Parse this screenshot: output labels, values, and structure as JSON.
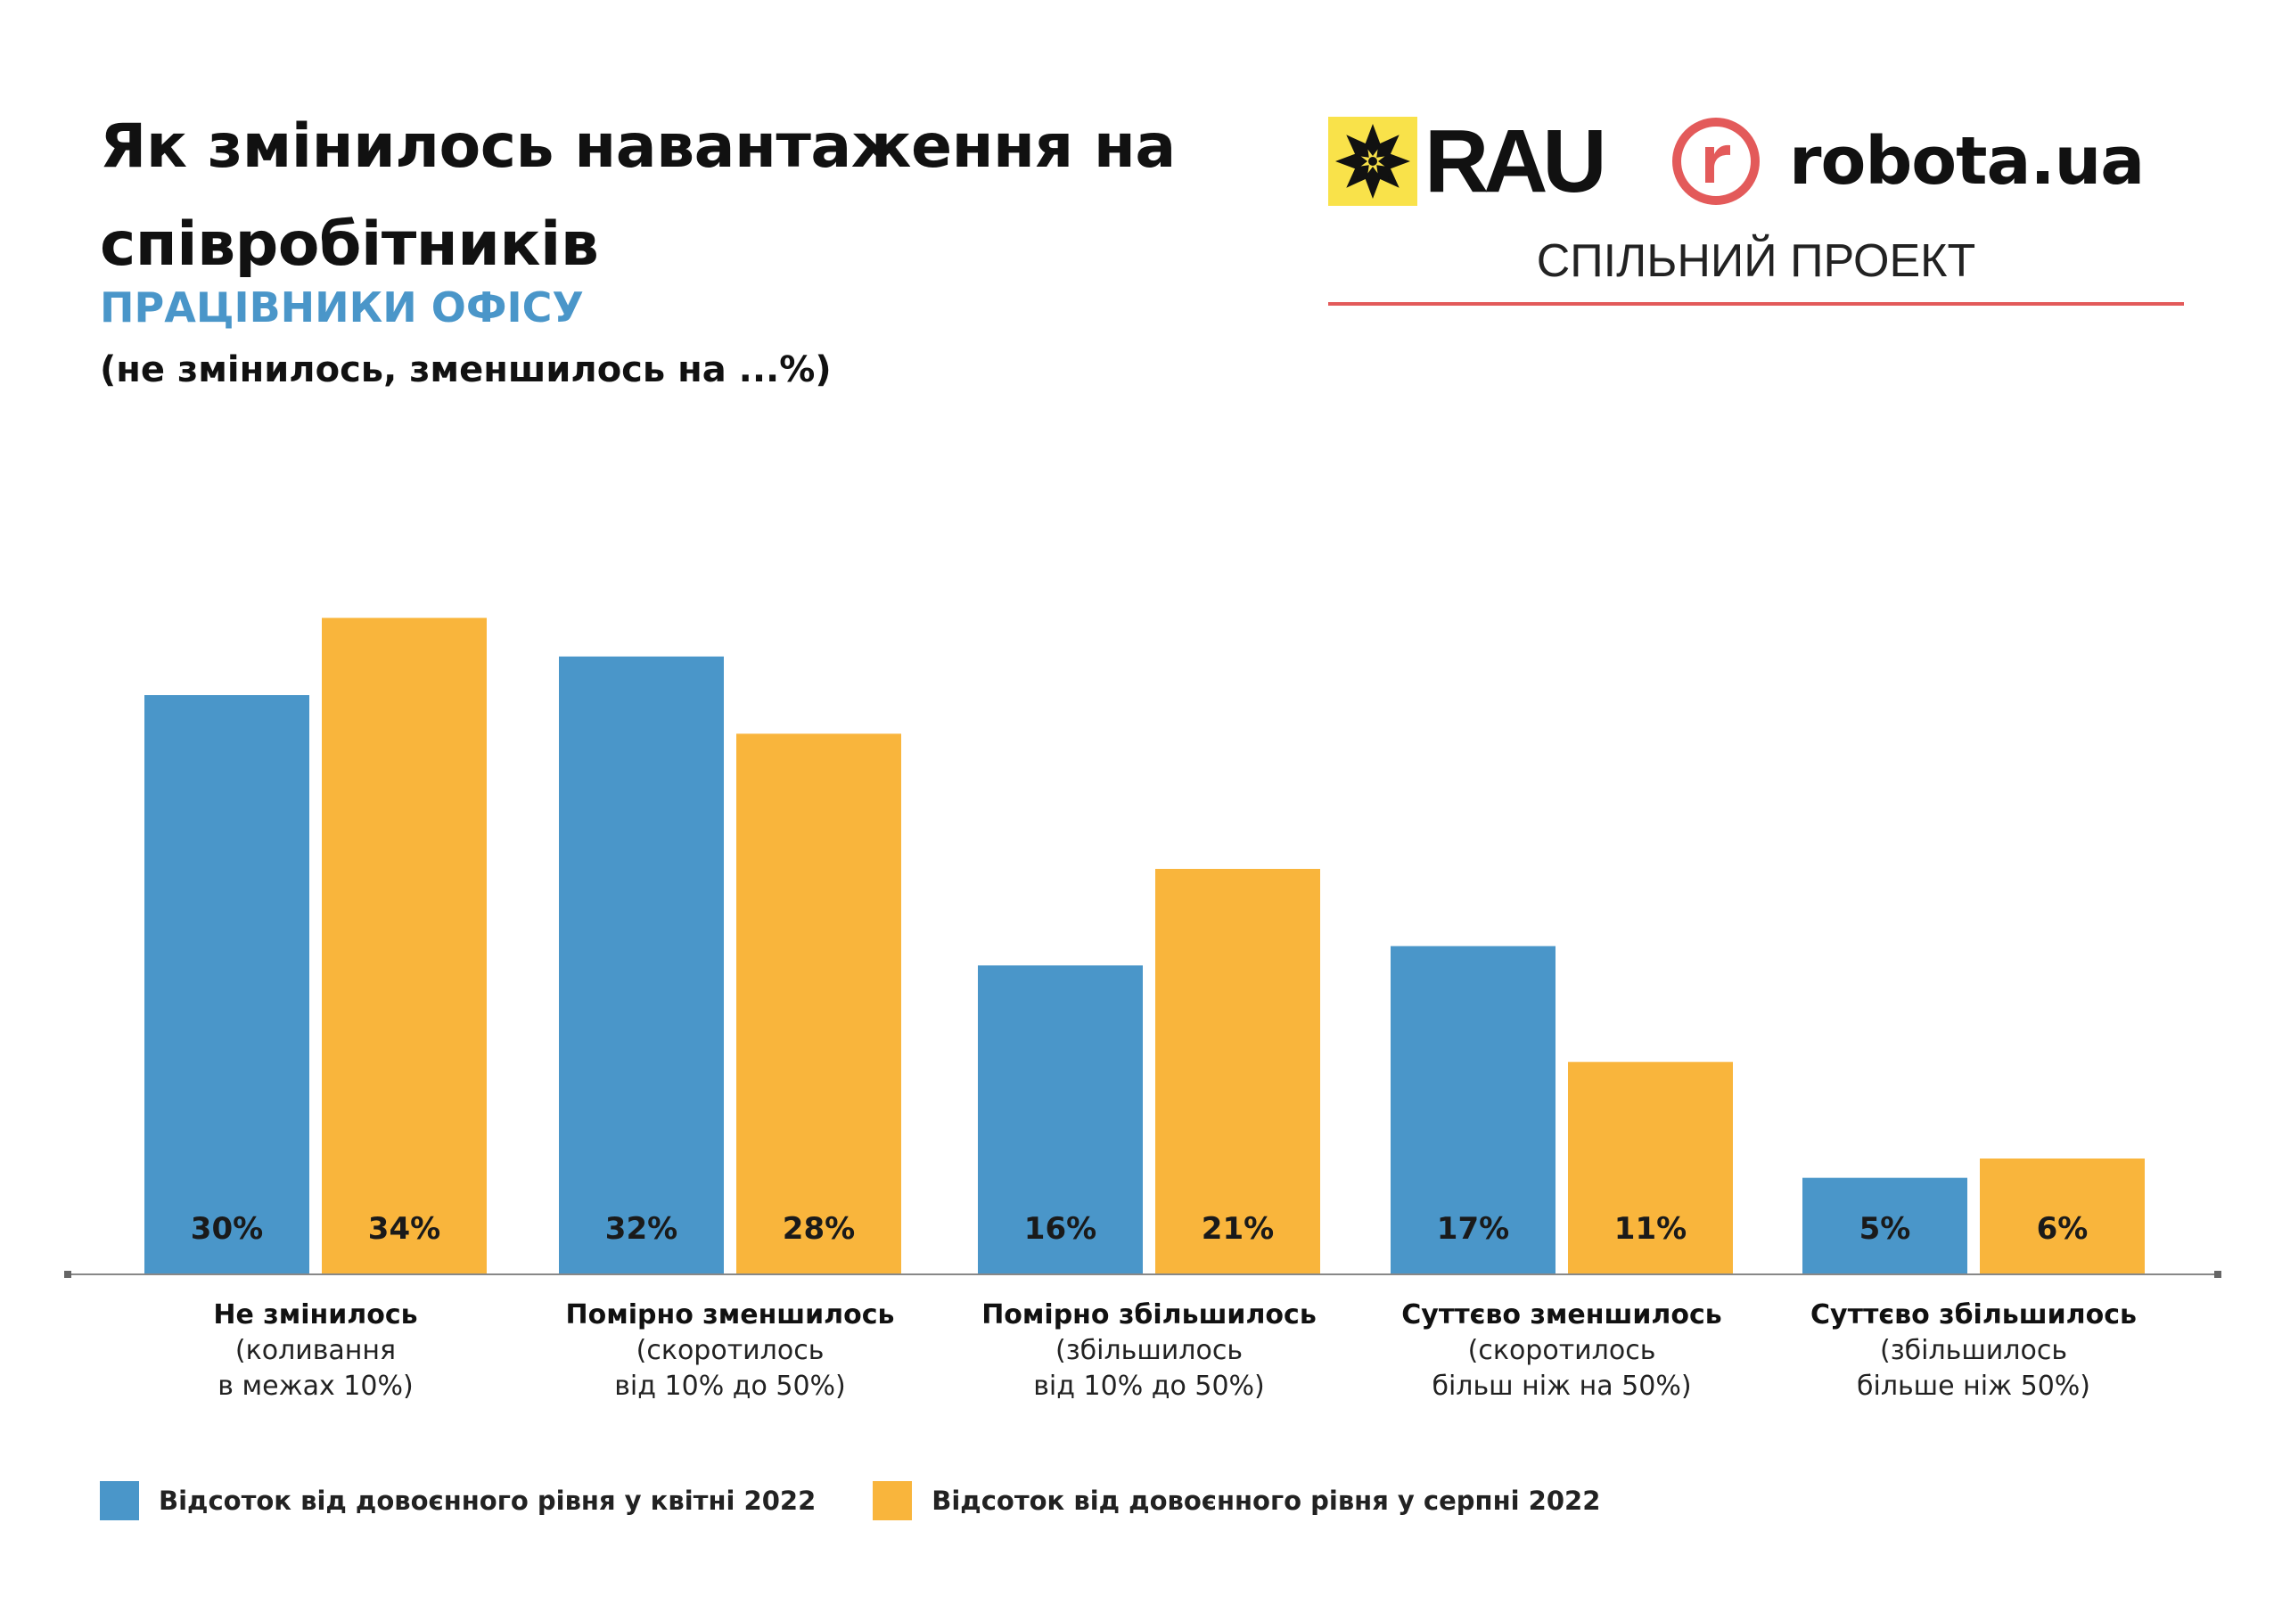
{
  "header": {
    "title": "Як змінилось навантаження на співробітників",
    "subtitle": "ПРАЦІВНИКИ ОФІСУ",
    "note": "(не змінилось, зменшилось на ...%)"
  },
  "logos": {
    "rau_text": "RAU",
    "robota_text": "robota.ua",
    "joint_project": "СПІЛЬНИЙ ПРОЕКТ",
    "rau_yellow": "#f9e24a",
    "robota_red": "#e35a5a"
  },
  "chart_data": {
    "type": "bar",
    "categories": [
      {
        "title": "Не змінилось",
        "lines": [
          "(коливання",
          "в межах 10%)"
        ]
      },
      {
        "title": "Помірно зменшилось",
        "lines": [
          "(скоротилось",
          "від 10% до 50%)"
        ]
      },
      {
        "title": "Помірно збільшилось",
        "lines": [
          "(збільшилось",
          "від 10% до 50%)"
        ]
      },
      {
        "title": "Суттєво зменшилось",
        "lines": [
          "(скоротилось",
          "більш ніж на 50%)"
        ]
      },
      {
        "title": "Суттєво збільшилось",
        "lines": [
          "(збільшилось",
          "більше ніж 50%)"
        ]
      }
    ],
    "series": [
      {
        "name": "Відсоток від довоєнного рівня у квітні 2022",
        "color": "#4a96c9",
        "values": [
          30,
          32,
          16,
          17,
          5
        ],
        "labels": [
          "30%",
          "32%",
          "16%",
          "17%",
          "5%"
        ]
      },
      {
        "name": "Відсоток від довоєнного рівня у серпні 2022",
        "color": "#f9b53c",
        "values": [
          34,
          28,
          21,
          11,
          6
        ],
        "labels": [
          "34%",
          "28%",
          "21%",
          "11%",
          "6%"
        ]
      }
    ],
    "ylim": [
      0,
      36
    ],
    "grid": false,
    "legend_position": "bottom-left",
    "axis_color": "#888888"
  }
}
